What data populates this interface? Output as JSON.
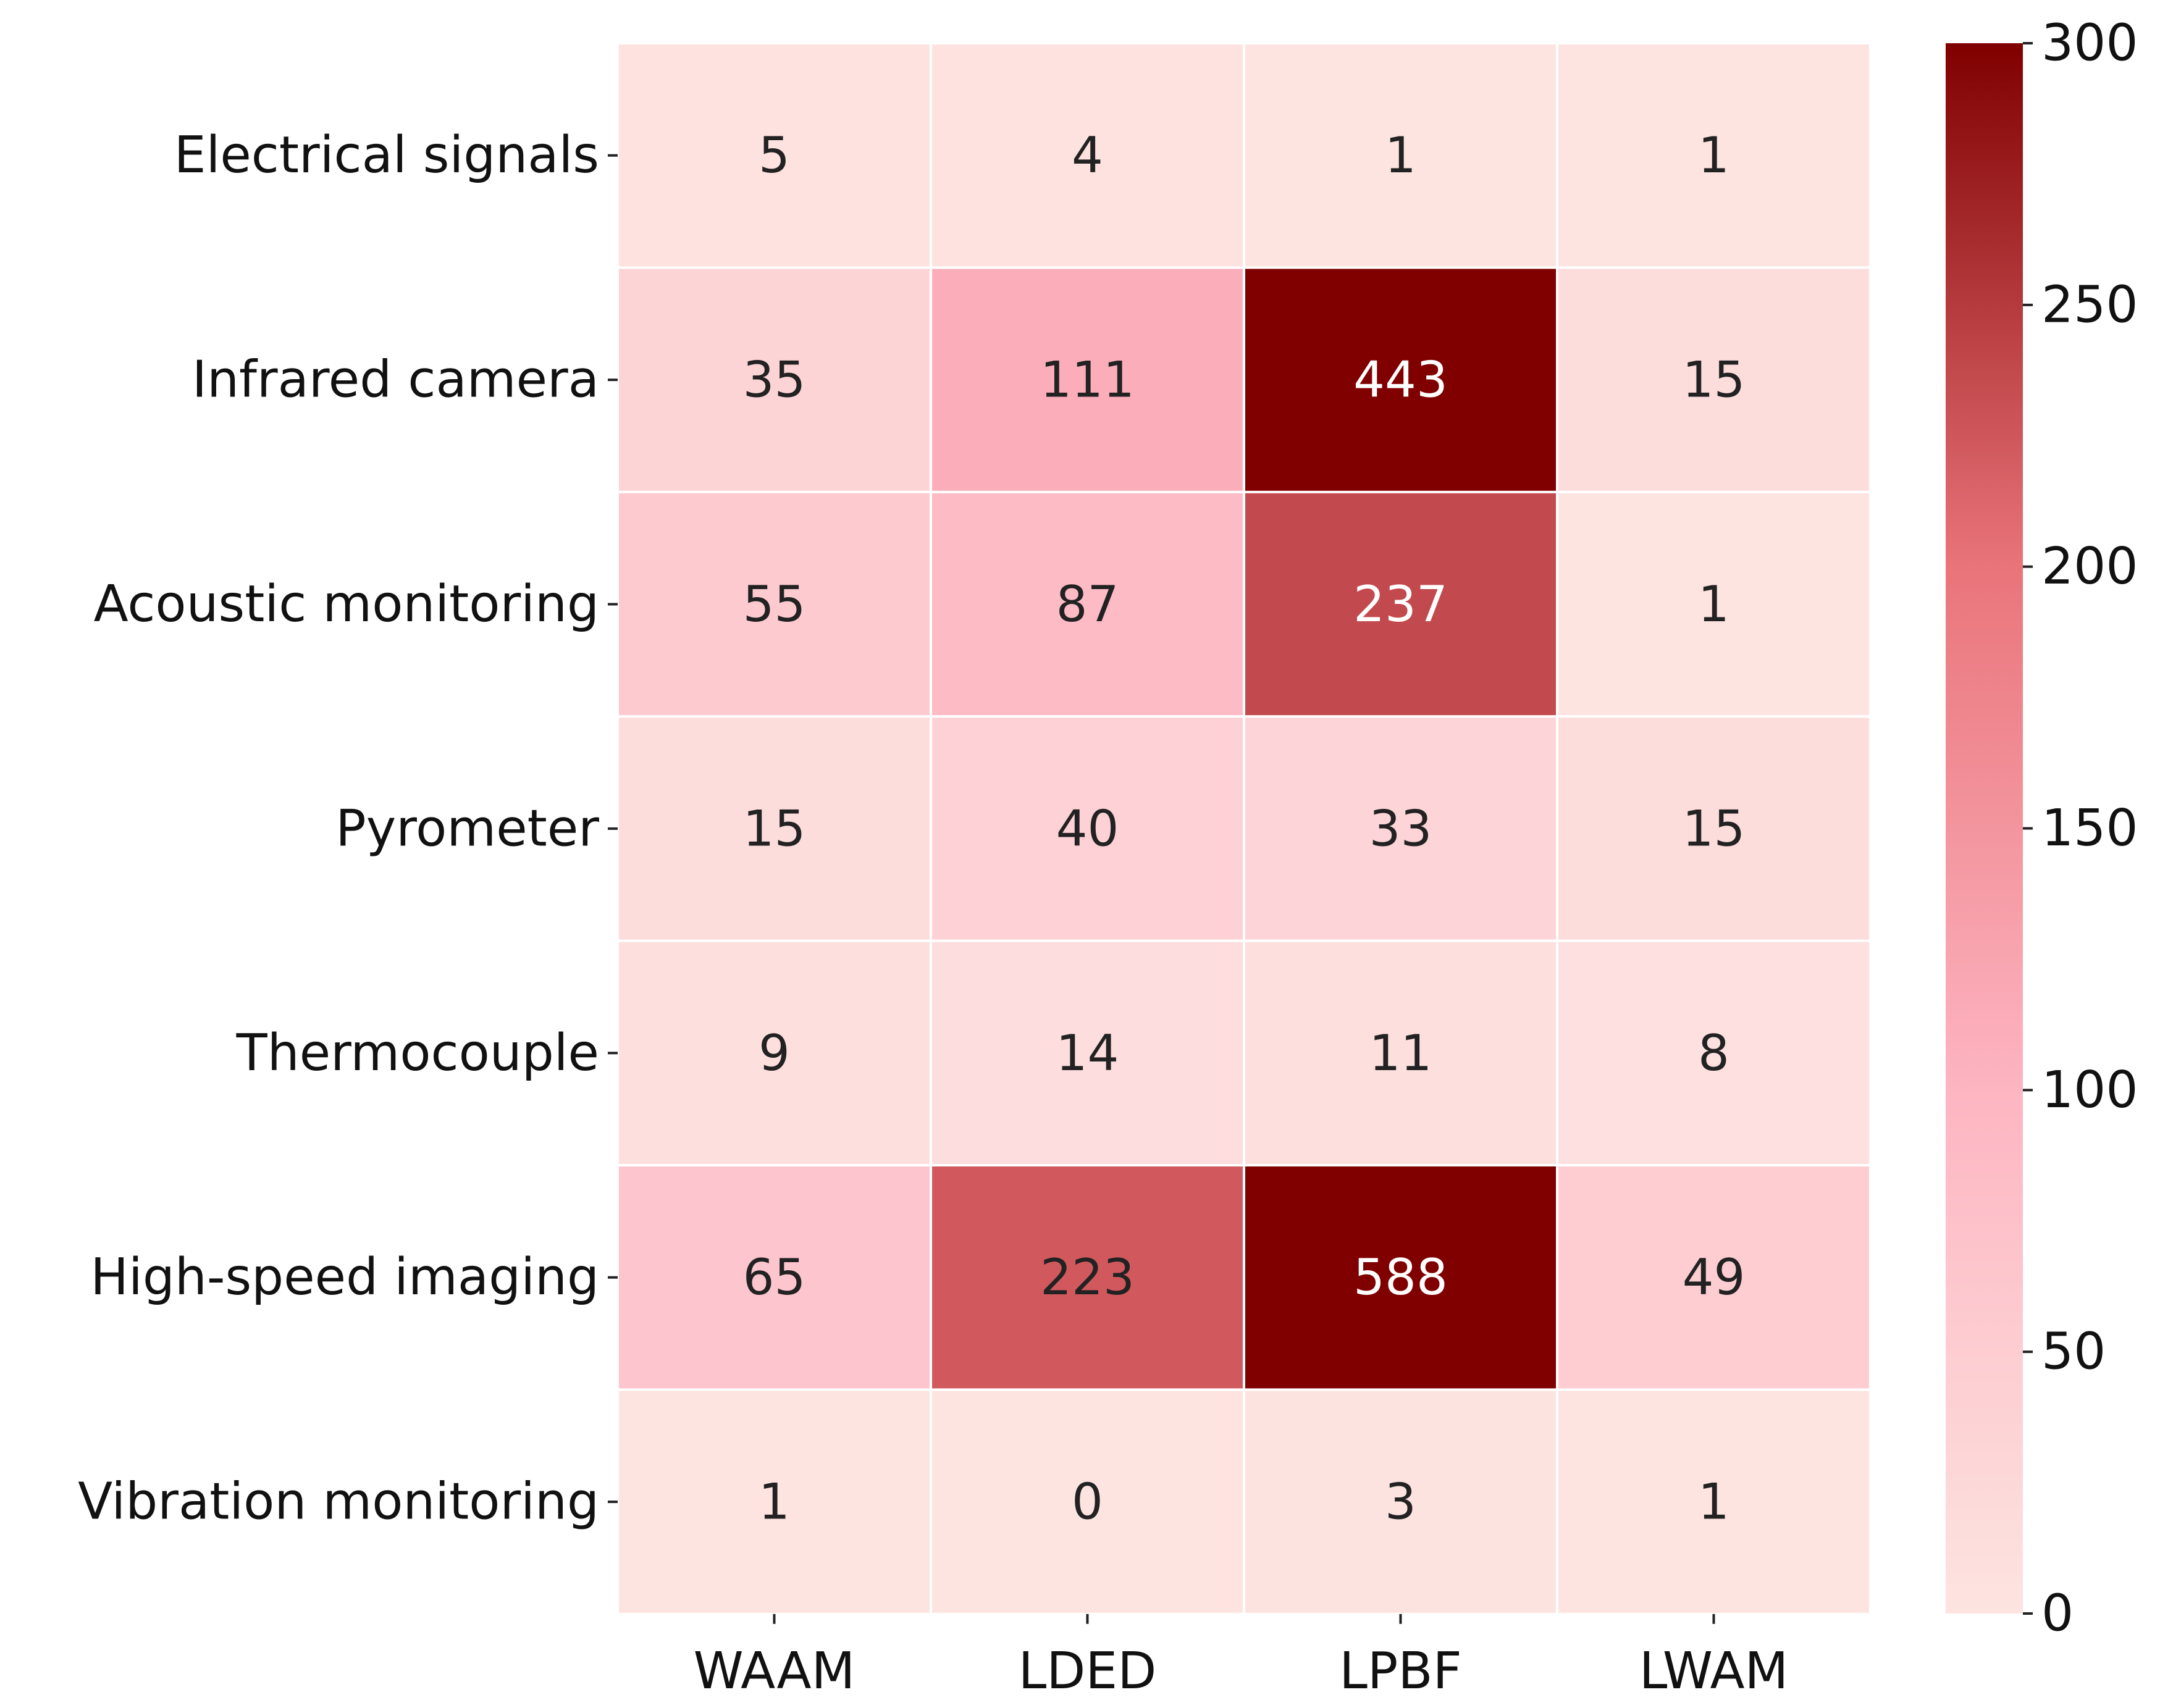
{
  "chart_data": {
    "type": "heatmap",
    "title": "",
    "xlabel": "",
    "ylabel": "",
    "rows": [
      "Electrical signals",
      "Infrared camera",
      "Acoustic monitoring",
      "Pyrometer",
      "Thermocouple",
      "High-speed imaging",
      "Vibration monitoring"
    ],
    "columns": [
      "WAAM",
      "LDED",
      "LPBF",
      "LWAM"
    ],
    "values": [
      [
        5,
        4,
        1,
        1
      ],
      [
        35,
        111,
        443,
        15
      ],
      [
        55,
        87,
        237,
        1
      ],
      [
        15,
        40,
        33,
        15
      ],
      [
        9,
        14,
        11,
        8
      ],
      [
        65,
        223,
        588,
        49
      ],
      [
        1,
        0,
        3,
        1
      ]
    ],
    "colorbar": {
      "range": [
        0,
        300
      ],
      "ticks": [
        0,
        50,
        100,
        150,
        200,
        250,
        300
      ],
      "colors": [
        "#fde4e1",
        "#fdb5c2",
        "#e9747a",
        "#800000"
      ]
    },
    "annotations": true,
    "grid": false
  }
}
